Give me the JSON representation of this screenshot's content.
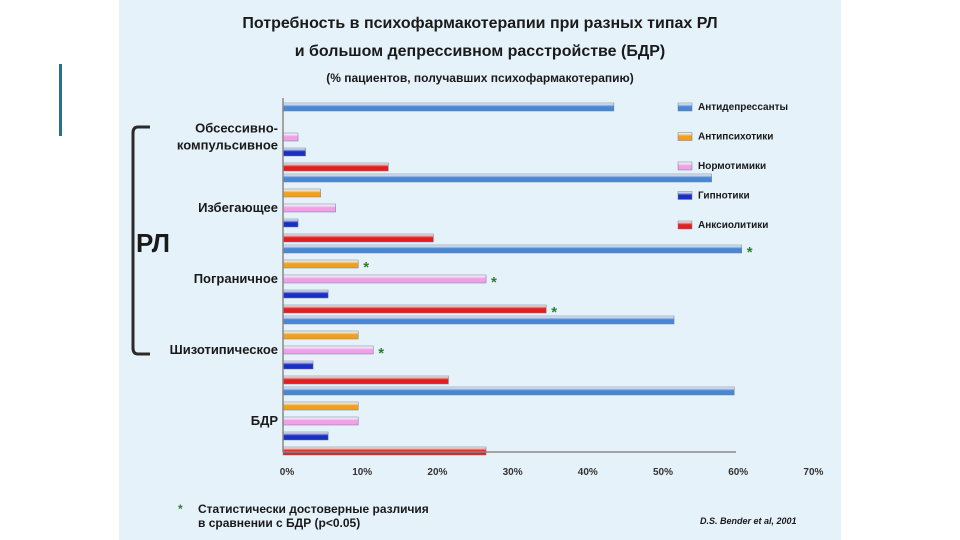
{
  "slide": {
    "title_line1": "Потребность в психофармакотерапии при разных типах РЛ",
    "title_line2": "и большом депрессивном расстройстве (БДР)",
    "subtitle": "(% пациентов, получавших психофармакотерапию)",
    "group_label": "РЛ",
    "footnote_star": "*",
    "footnote_line1": "Статистически достоверные различия",
    "footnote_line2": "в сравнении с БДР (p<0.05)",
    "source": "D.S. Bender et al, 2001"
  },
  "colors": {
    "panel_background": "#e6f2fa",
    "accent": "#2b6f8f",
    "significance_star": "#2e7d32"
  },
  "chart_data": {
    "type": "bar",
    "orientation": "horizontal",
    "title": "Потребность в психофармакотерапии при разных типах РЛ и большом депрессивном расстройстве (БДР)",
    "subtitle": "(% пациентов, получавших психофармакотерапию)",
    "categories": [
      "Обсессивно-компульсивное",
      "Избегающее",
      "Пограничное",
      "Шизотипическое",
      "БДР"
    ],
    "category_lines": [
      [
        "Обсессивно-",
        "компульсивное"
      ],
      [
        "Избегающее"
      ],
      [
        "Пограничное"
      ],
      [
        "Шизотипическое"
      ],
      [
        "БДР"
      ]
    ],
    "series": [
      {
        "name": "Антидепрессанты",
        "color": "#4a86d4",
        "values": [
          44,
          57,
          61,
          52,
          60
        ]
      },
      {
        "name": "Антипсихотики",
        "color": "#f0a020",
        "values": [
          0,
          5,
          10,
          10,
          10
        ]
      },
      {
        "name": "Нормотимики",
        "color": "#f0a0e6",
        "values": [
          2,
          7,
          27,
          12,
          10
        ]
      },
      {
        "name": "Гипнотики",
        "color": "#1a2fc4",
        "values": [
          3,
          2,
          6,
          4,
          6
        ]
      },
      {
        "name": "Анксиолитики",
        "color": "#e02020",
        "values": [
          14,
          20,
          35,
          22,
          27
        ]
      }
    ],
    "significant": [
      {
        "category": "Пограничное",
        "series": "Антидепрессанты"
      },
      {
        "category": "Пограничное",
        "series": "Антипсихотики"
      },
      {
        "category": "Пограничное",
        "series": "Нормотимики"
      },
      {
        "category": "Пограничное",
        "series": "Анксиолитики"
      },
      {
        "category": "Шизотипическое",
        "series": "Нормотимики"
      }
    ],
    "significance_marker": "*",
    "x_ticks": [
      "0%",
      "10%",
      "20%",
      "30%",
      "40%",
      "50%",
      "60%",
      "70%"
    ],
    "xlim": [
      0,
      70
    ],
    "legend_position": "right",
    "grid": false
  }
}
